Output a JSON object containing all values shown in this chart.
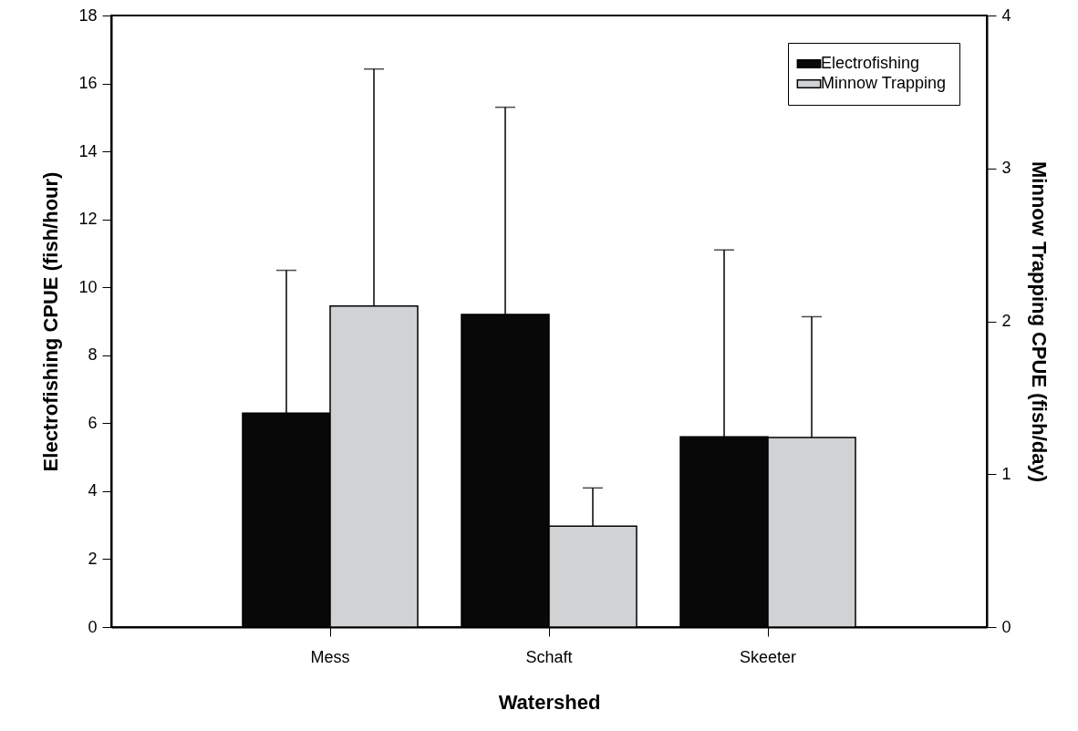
{
  "chart_data": {
    "type": "bar",
    "xlabel": "Watershed",
    "ylabel": "Electrofishing CPUE (fish/hour)",
    "y2label": "Minnow Trapping CPUE (fish/day)",
    "categories": [
      "Mess",
      "Schaft",
      "Skeeter"
    ],
    "series": [
      {
        "name": "Electrofishing",
        "color": "#080808",
        "values": [
          6.3,
          9.2,
          5.6
        ],
        "errors": [
          [
            6.3,
            10.5
          ],
          [
            9.2,
            15.3
          ],
          [
            5.6,
            11.1
          ]
        ]
      },
      {
        "name": "Minnow Trapping",
        "color": "#d1d2d4",
        "axis": "y2",
        "values": [
          2.1,
          0.66,
          1.24
        ],
        "errors": [
          [
            2.1,
            3.65
          ],
          [
            0.66,
            0.91
          ],
          [
            1.24,
            2.03
          ]
        ]
      }
    ],
    "ylim": [
      0,
      18
    ],
    "yticks": [
      0,
      2,
      4,
      6,
      8,
      10,
      12,
      14,
      16,
      18
    ],
    "y2lim": [
      0,
      4
    ],
    "y2ticks": [
      0,
      1,
      2,
      3,
      4
    ],
    "grid": false,
    "legend": "top right"
  }
}
